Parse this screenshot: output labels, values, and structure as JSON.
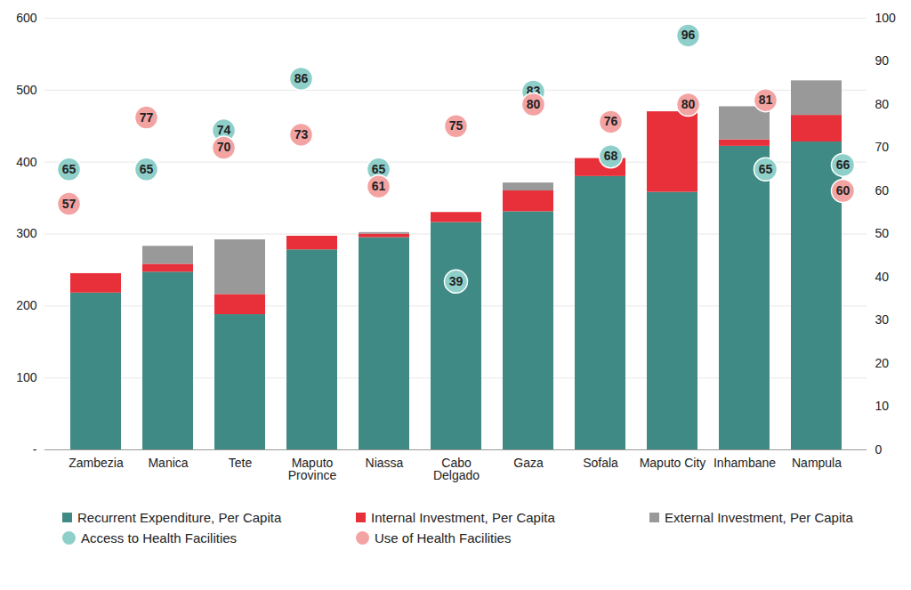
{
  "chart_data": {
    "type": "bar",
    "stacked": true,
    "grid": true,
    "categories": [
      "Zambezia",
      "Manica",
      "Tete",
      "Maputo\nProvince",
      "Niassa",
      "Cabo\nDelgado",
      "Gaza",
      "Sofala",
      "Maputo City",
      "Inhambane",
      "Nampula"
    ],
    "ylim": [
      0,
      600
    ],
    "yticks": [
      {
        "value": 0,
        "label": "-"
      },
      100,
      200,
      300,
      400,
      500,
      600
    ],
    "y2lim": [
      0,
      100
    ],
    "y2ticks": [
      0,
      10,
      20,
      30,
      40,
      50,
      60,
      70,
      80,
      90,
      100
    ],
    "series": [
      {
        "name": "Recurrent Expenditure, Per Capita",
        "type": "bar",
        "color": "#3f8a84",
        "values": [
          218,
          247,
          188,
          278,
          295,
          316,
          331,
          380,
          358,
          422,
          428
        ]
      },
      {
        "name": "Internal Investment, Per Capita",
        "type": "bar",
        "color": "#e8303a",
        "values": [
          27,
          11,
          28,
          19,
          5,
          14,
          29,
          25,
          112,
          9,
          37
        ]
      },
      {
        "name": "External Investment, Per Capita",
        "type": "bar",
        "color": "#999999",
        "values": [
          0,
          25,
          76,
          0,
          2,
          0,
          11,
          0,
          0,
          46,
          48
        ]
      },
      {
        "name": "Access to Health Facilities",
        "type": "scatter",
        "axis": "y2",
        "marker": "circle",
        "color": "#8ecfca",
        "data_labels": true,
        "values": [
          65,
          65,
          74,
          86,
          65,
          39,
          83,
          68,
          96,
          65,
          66
        ]
      },
      {
        "name": "Use of Health Facilities",
        "type": "scatter",
        "axis": "y2",
        "marker": "circle",
        "color": "#f4a3a3",
        "data_labels": true,
        "values": [
          57,
          77,
          70,
          73,
          61,
          75,
          80,
          76,
          80,
          81,
          60
        ]
      }
    ]
  }
}
